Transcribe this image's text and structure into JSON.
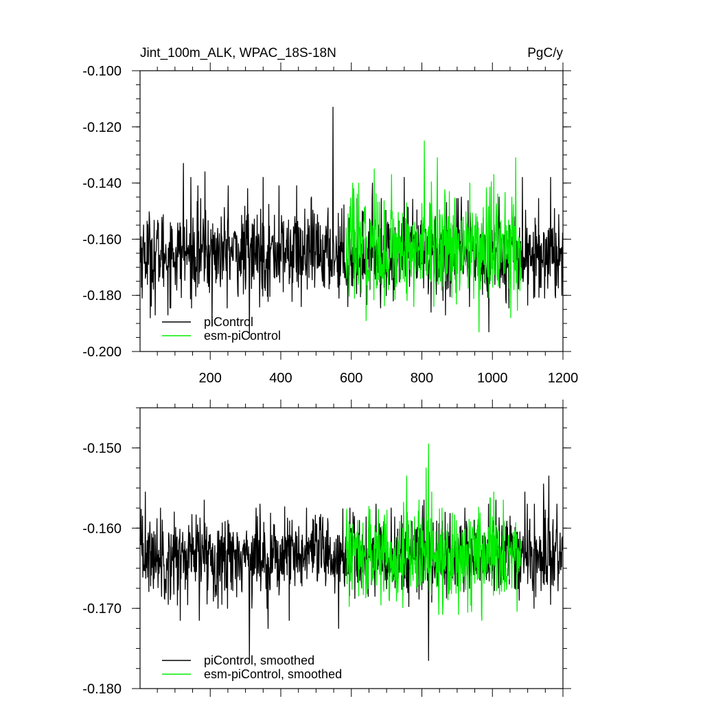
{
  "header": {
    "left_title": "Jint_100m_ALK, WPAC_18S-18N",
    "right_title": "PgC/y"
  },
  "colors": {
    "piControl": "#000000",
    "esm_piControl": "#00ee00"
  },
  "chart_data": [
    {
      "type": "line",
      "title": "Jint_100m_ALK, WPAC_18S-18N",
      "units": "PgC/y",
      "xlim": [
        1,
        1200
      ],
      "ylim": [
        -0.2,
        -0.1
      ],
      "xticks": [
        200,
        400,
        600,
        800,
        1000,
        1200
      ],
      "xtick_labels": [
        "200",
        "400",
        "600",
        "800",
        "1000",
        "1200"
      ],
      "yticks": [
        -0.2,
        -0.18,
        -0.16,
        -0.14,
        -0.12,
        -0.1
      ],
      "ytick_labels": [
        "-0.200",
        "-0.180",
        "-0.160",
        "-0.140",
        "-0.120",
        "-0.100"
      ],
      "grid": false,
      "legend_position": "bottom-left",
      "series": [
        {
          "name": "piControl",
          "color": "#000000",
          "x_range": [
            1,
            1200
          ],
          "y_mean": -0.165,
          "y_spread": 0.0075,
          "keypoints": [
            [
              30,
              -0.188
            ],
            [
              44,
              -0.187
            ],
            [
              80,
              -0.187
            ],
            [
              124,
              -0.133
            ],
            [
              145,
              -0.138
            ],
            [
              165,
              -0.141
            ],
            [
              185,
              -0.136
            ],
            [
              205,
              -0.191
            ],
            [
              251,
              -0.141
            ],
            [
              306,
              -0.142
            ],
            [
              311,
              -0.195
            ],
            [
              350,
              -0.138
            ],
            [
              395,
              -0.141
            ],
            [
              445,
              -0.141
            ],
            [
              458,
              -0.184
            ],
            [
              487,
              -0.145
            ],
            [
              548,
              -0.113
            ],
            [
              590,
              -0.184
            ],
            [
              660,
              -0.14
            ],
            [
              719,
              -0.182
            ],
            [
              750,
              -0.138
            ],
            [
              826,
              -0.186
            ],
            [
              867,
              -0.187
            ],
            [
              912,
              -0.145
            ],
            [
              935,
              -0.184
            ],
            [
              962,
              -0.185
            ],
            [
              990,
              -0.193
            ],
            [
              1019,
              -0.145
            ],
            [
              1085,
              -0.138
            ],
            [
              1117,
              -0.181
            ],
            [
              1165,
              -0.138
            ],
            [
              1178,
              -0.18
            ],
            [
              1197,
              -0.18
            ]
          ]
        },
        {
          "name": "esm-piControl",
          "color": "#00ee00",
          "x_range": [
            585,
            1080
          ],
          "y_mean": -0.163,
          "y_spread": 0.009,
          "keypoints": [
            [
              604,
              -0.14
            ],
            [
              642,
              -0.189
            ],
            [
              665,
              -0.135
            ],
            [
              705,
              -0.178
            ],
            [
              714,
              -0.137
            ],
            [
              757,
              -0.147
            ],
            [
              777,
              -0.184
            ],
            [
              807,
              -0.125
            ],
            [
              828,
              -0.15
            ],
            [
              844,
              -0.131
            ],
            [
              872,
              -0.172
            ],
            [
              936,
              -0.14
            ],
            [
              962,
              -0.193
            ],
            [
              1004,
              -0.137
            ],
            [
              1037,
              -0.167
            ],
            [
              1052,
              -0.188
            ],
            [
              1066,
              -0.131
            ]
          ]
        }
      ]
    },
    {
      "type": "line",
      "xlim": [
        1,
        1200
      ],
      "ylim": [
        -0.18,
        -0.145
      ],
      "xticks": [
        200,
        400,
        600,
        800,
        1000,
        1200
      ],
      "yticks": [
        -0.18,
        -0.17,
        -0.16,
        -0.15
      ],
      "ytick_labels": [
        "-0.180",
        "-0.170",
        "-0.160",
        "-0.150"
      ],
      "grid": false,
      "legend_position": "bottom-left",
      "series": [
        {
          "name": "piControl, smoothed",
          "color": "#000000",
          "x_range": [
            1,
            1200
          ],
          "y_mean": -0.1635,
          "y_spread": 0.0025,
          "keypoints": [
            [
              8,
              -0.1585
            ],
            [
              16,
              -0.1555
            ],
            [
              59,
              -0.1575
            ],
            [
              81,
              -0.1695
            ],
            [
              115,
              -0.1715
            ],
            [
              169,
              -0.1715
            ],
            [
              183,
              -0.1565
            ],
            [
              233,
              -0.1695
            ],
            [
              311,
              -0.1765
            ],
            [
              330,
              -0.1575
            ],
            [
              364,
              -0.1725
            ],
            [
              424,
              -0.1715
            ],
            [
              473,
              -0.1575
            ],
            [
              564,
              -0.1725
            ],
            [
              596,
              -0.1575
            ],
            [
              667,
              -0.1685
            ],
            [
              711,
              -0.1655
            ],
            [
              806,
              -0.1565
            ],
            [
              816,
              -0.1665
            ],
            [
              819,
              -0.1765
            ],
            [
              860,
              -0.1625
            ],
            [
              900,
              -0.1625
            ],
            [
              922,
              -0.1575
            ],
            [
              959,
              -0.1605
            ],
            [
              1010,
              -0.1565
            ],
            [
              1050,
              -0.1585
            ],
            [
              1072,
              -0.1675
            ],
            [
              1092,
              -0.1555
            ],
            [
              1110,
              -0.1625
            ],
            [
              1145,
              -0.1545
            ],
            [
              1160,
              -0.1535
            ],
            [
              1200,
              -0.1625
            ]
          ]
        },
        {
          "name": "esm-piControl, smoothed",
          "color": "#00ee00",
          "x_range": [
            585,
            1080
          ],
          "y_mean": -0.1635,
          "y_spread": 0.0028,
          "keypoints": [
            [
              604,
              -0.1595
            ],
            [
              630,
              -0.1675
            ],
            [
              660,
              -0.1665
            ],
            [
              697,
              -0.1595
            ],
            [
              735,
              -0.1615
            ],
            [
              757,
              -0.1535
            ],
            [
              775,
              -0.1665
            ],
            [
              792,
              -0.1565
            ],
            [
              812,
              -0.1525
            ],
            [
              819,
              -0.1495
            ],
            [
              828,
              -0.1555
            ],
            [
              857,
              -0.1575
            ],
            [
              900,
              -0.1655
            ],
            [
              930,
              -0.1705
            ],
            [
              970,
              -0.1715
            ],
            [
              990,
              -0.1605
            ],
            [
              1004,
              -0.1555
            ],
            [
              1031,
              -0.1565
            ],
            [
              1050,
              -0.1625
            ],
            [
              1078,
              -0.1635
            ]
          ]
        }
      ]
    }
  ]
}
